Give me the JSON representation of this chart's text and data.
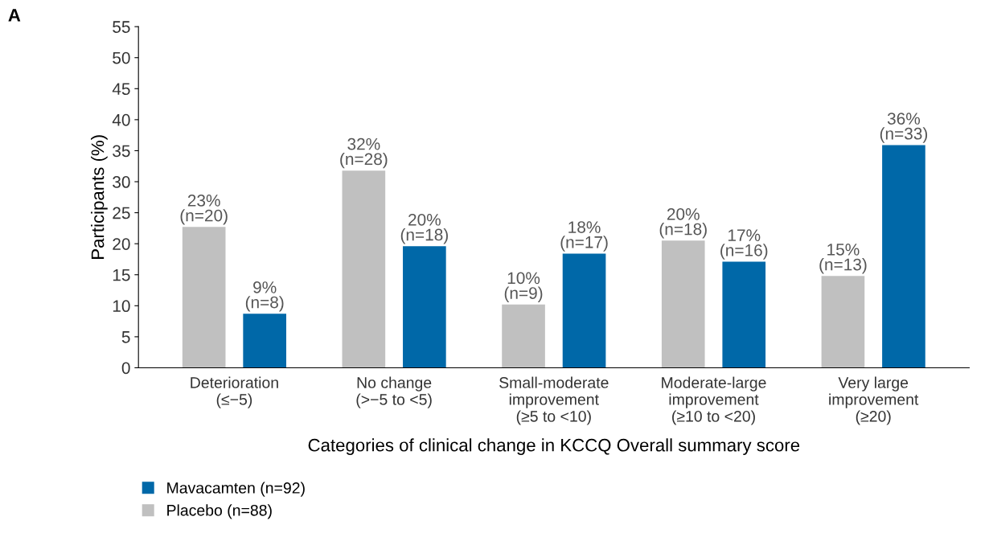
{
  "chart_data": {
    "type": "bar",
    "xlabel": "Categories of clinical change in KCCQ Overall summary score",
    "ylabel": "Participants (%)",
    "categories": [
      "Deterioration\n(≤−5)",
      "No change\n(>−5 to <5)",
      "Small-moderate\nimprovement\n(≥5 to <10)",
      "Moderate-large\nimprovement\n(≥10 to <20)",
      "Very large\nimprovement\n(≥20)"
    ],
    "series": [
      {
        "name": "Placebo (n=88)",
        "color": "#c0c0c0",
        "values": [
          22.7,
          31.8,
          10.2,
          20.5,
          14.8
        ],
        "value_labels": [
          "23%\n(n=20)",
          "32%\n(n=28)",
          "10%\n(n=9)",
          "20%\n(n=18)",
          "15%\n(n=13)"
        ]
      },
      {
        "name": "Mavacamten (n=92)",
        "color": "#0068a8",
        "values": [
          8.7,
          19.6,
          18.4,
          17.1,
          35.9
        ],
        "value_labels": [
          "9%\n(n=8)",
          "20%\n(n=18)",
          "18%\n(n=17)",
          "17%\n(n=16)",
          "36%\n(n=33)"
        ]
      }
    ],
    "ylim": [
      0,
      55
    ],
    "yticks": [
      0,
      5,
      10,
      15,
      20,
      25,
      30,
      35,
      40,
      45,
      50,
      55
    ],
    "grid": false,
    "legend": "bottom left",
    "annotations": [
      "A"
    ]
  }
}
